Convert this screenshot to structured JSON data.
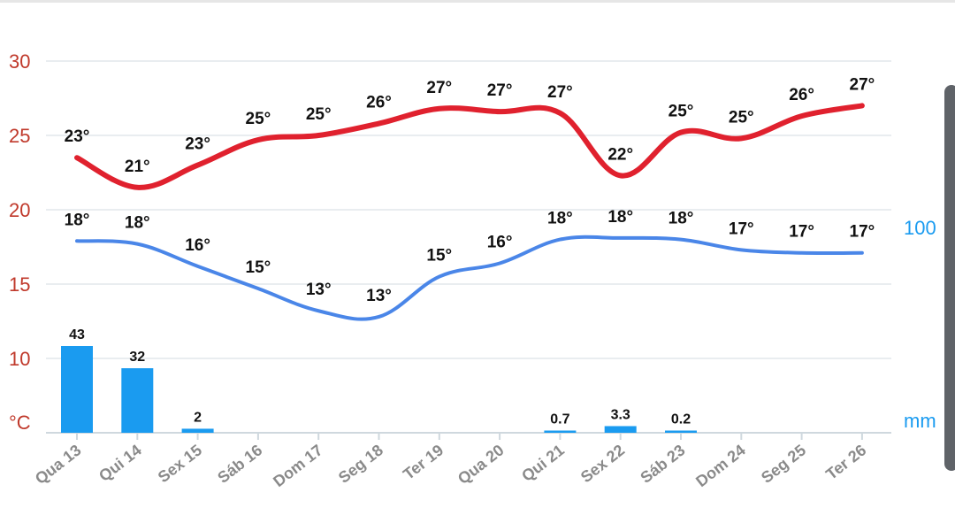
{
  "colors": {
    "max_line": "#e0212e",
    "min_line": "#4a86e8",
    "bars": "#1a9bf0",
    "left_axis": "#c0392b",
    "right_axis": "#1a9bf0",
    "grid": "#e9edf0",
    "day_labels": "#8a8a8a"
  },
  "chart_data": {
    "type": "line",
    "categories": [
      "Qua 13",
      "Qui 14",
      "Sex 15",
      "Sáb 16",
      "Dom 17",
      "Seg 18",
      "Ter 19",
      "Qua 20",
      "Qui 21",
      "Sex 22",
      "Sáb 23",
      "Dom 24",
      "Seg 25",
      "Ter 26"
    ],
    "left_axis": {
      "unit_label": "°C",
      "ticks": [
        "10",
        "15",
        "20",
        "25",
        "30"
      ],
      "range": [
        5,
        30
      ]
    },
    "right_axis": {
      "unit_label": "mm",
      "ticks": [
        "100"
      ]
    },
    "series": [
      {
        "type": "line",
        "values": [
          23.5,
          21.5,
          23,
          24.7,
          25,
          25.8,
          26.8,
          26.6,
          26.5,
          22.3,
          25.2,
          24.8,
          26.3,
          27
        ],
        "labels": [
          "23°",
          "21°",
          "23°",
          "25°",
          "25°",
          "26°",
          "27°",
          "27°",
          "27°",
          "22°",
          "25°",
          "25°",
          "26°",
          "27°"
        ]
      },
      {
        "type": "line",
        "values": [
          17.9,
          17.7,
          16.2,
          14.7,
          13.2,
          12.8,
          15.5,
          16.4,
          18,
          18.1,
          18,
          17.3,
          17.1,
          17.1
        ],
        "labels": [
          "18°",
          "18°",
          "16°",
          "15°",
          "13°",
          "13°",
          "15°",
          "16°",
          "18°",
          "18°",
          "18°",
          "17°",
          "17°",
          "17°"
        ]
      },
      {
        "type": "bar",
        "unit": "mm",
        "values": [
          43,
          32,
          2,
          0,
          0,
          0,
          0,
          0,
          0.7,
          3.3,
          0.2,
          0,
          0,
          0
        ],
        "labels": [
          "43",
          "32",
          "2",
          "",
          "",
          "",
          "",
          "",
          "0.7",
          "3.3",
          "0.2",
          "",
          "",
          ""
        ]
      }
    ]
  }
}
